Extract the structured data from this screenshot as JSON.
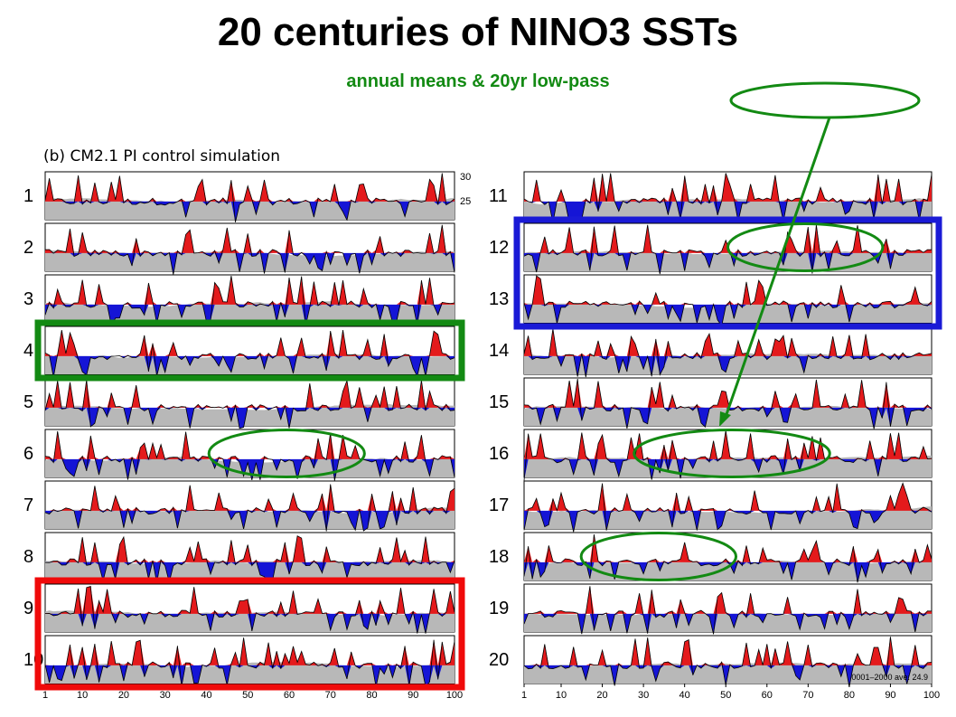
{
  "header": {
    "title": "20 centuries of NINO3 SSTs",
    "subtitle": "annual means & 20yr low-pass",
    "panel_label": "(b)  CM2.1  PI  control  simulation"
  },
  "colors": {
    "warm": "#e41a1c",
    "cold": "#1515d6",
    "lowpass": "#b8b8b8",
    "highlight_green": "#138a13",
    "highlight_blue": "#1a1ad6",
    "highlight_red": "#f00a0a"
  },
  "chart_data": {
    "type": "area",
    "centuries": [
      "1",
      "2",
      "3",
      "4",
      "5",
      "6",
      "7",
      "8",
      "9",
      "10",
      "11",
      "12",
      "13",
      "14",
      "15",
      "16",
      "17",
      "18",
      "19",
      "20"
    ],
    "x_range": [
      1,
      100
    ],
    "x_ticks": [
      1,
      10,
      20,
      30,
      40,
      50,
      60,
      70,
      80,
      90,
      100
    ],
    "x_tick_labels": [
      "1",
      "10",
      "20",
      "30",
      "40",
      "50",
      "60",
      "70",
      "80",
      "90",
      "100"
    ],
    "y_ticks": [
      25,
      30
    ],
    "y_tick_labels": [
      "25",
      "30"
    ],
    "long_term_mean_label": "0001–2000 ave: 24.9",
    "series": [
      {
        "name": "annual mean"
      },
      {
        "name": "20yr low-pass"
      }
    ],
    "highlight_boxes": [
      {
        "color": "green",
        "centuries": [
          "4"
        ]
      },
      {
        "color": "blue",
        "centuries": [
          "12",
          "13"
        ]
      },
      {
        "color": "red",
        "centuries": [
          "9",
          "10"
        ]
      }
    ],
    "highlight_ellipses": [
      {
        "century": "6",
        "years": [
          40,
          78
        ]
      },
      {
        "century": "12",
        "years": [
          50,
          88
        ]
      },
      {
        "century": "16",
        "years": [
          27,
          75
        ]
      },
      {
        "century": "18",
        "years": [
          14,
          52
        ]
      },
      {
        "century": "legend",
        "years": [
          0,
          0
        ]
      }
    ]
  }
}
